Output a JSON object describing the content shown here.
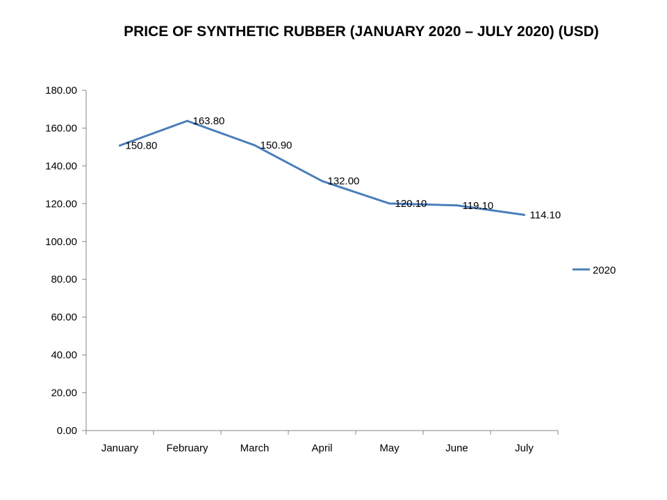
{
  "chart_data": {
    "type": "line",
    "title": "PRICE OF SYNTHETIC RUBBER (JANUARY 2020 – JULY 2020) (USD)",
    "xlabel": "",
    "ylabel": "",
    "categories": [
      "January",
      "February",
      "March",
      "April",
      "May",
      "June",
      "July"
    ],
    "series": [
      {
        "name": "2020",
        "values": [
          150.8,
          163.8,
          150.9,
          132.0,
          120.1,
          119.1,
          114.1
        ],
        "labels": [
          "150.80",
          "163.80",
          "150.90",
          "132.00",
          "120.10",
          "119.10",
          "114.10"
        ],
        "color": "#4a7ebb"
      }
    ],
    "ylim": [
      0,
      180
    ],
    "yticks": [
      "0.00",
      "20.00",
      "40.00",
      "60.00",
      "80.00",
      "100.00",
      "120.00",
      "140.00",
      "160.00",
      "180.00"
    ],
    "grid": false,
    "legend": "right",
    "axis_color": "#868686"
  }
}
